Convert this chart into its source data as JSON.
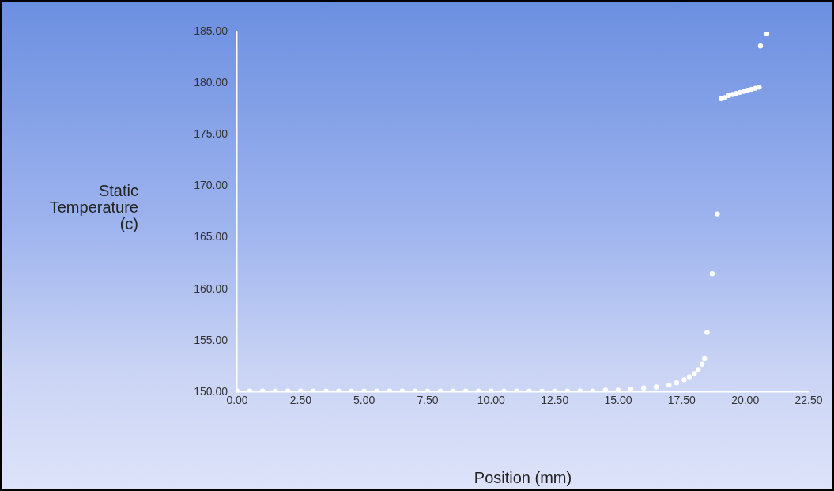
{
  "chart_data": {
    "type": "scatter",
    "xlabel": "Position (mm)",
    "ylabel": "Static Temperature (c)",
    "xlim": [
      0,
      22.5
    ],
    "ylim": [
      150,
      185
    ],
    "xticks": [
      {
        "value": 0,
        "label": "0.00"
      },
      {
        "value": 2.5,
        "label": "2.50"
      },
      {
        "value": 5,
        "label": "5.00"
      },
      {
        "value": 7.5,
        "label": "7.50"
      },
      {
        "value": 10,
        "label": "10.00"
      },
      {
        "value": 12.5,
        "label": "12.50"
      },
      {
        "value": 15,
        "label": "15.00"
      },
      {
        "value": 17.5,
        "label": "17.50"
      },
      {
        "value": 20,
        "label": "20.00"
      },
      {
        "value": 22.5,
        "label": "22.50"
      }
    ],
    "yticks": [
      {
        "value": 150,
        "label": "150.00"
      },
      {
        "value": 155,
        "label": "155.00"
      },
      {
        "value": 160,
        "label": "160.00"
      },
      {
        "value": 165,
        "label": "165.00"
      },
      {
        "value": 170,
        "label": "170.00"
      },
      {
        "value": 175,
        "label": "175.00"
      },
      {
        "value": 180,
        "label": "180.00"
      },
      {
        "value": 185,
        "label": "185.00"
      }
    ],
    "grid": false,
    "legend": false,
    "marker": "circle",
    "series": [
      {
        "color": "#ffffff",
        "x": [
          0,
          0.5,
          1,
          1.5,
          2,
          2.5,
          3,
          3.5,
          4,
          4.5,
          5,
          5.5,
          6,
          6.5,
          7,
          7.5,
          8,
          8.5,
          9,
          9.5,
          10,
          10.5,
          11,
          11.5,
          12,
          12.5,
          13,
          13.5,
          14,
          14.5,
          15,
          15.5,
          16,
          16.5,
          17,
          17.3,
          17.6,
          17.8,
          18,
          18.15,
          18.3,
          18.4,
          18.5,
          18.7,
          18.9,
          19.05,
          19.2,
          19.35,
          19.5,
          19.65,
          19.8,
          19.95,
          20.1,
          20.25,
          20.4,
          20.55,
          20.6,
          20.85
        ],
        "values": [
          150.1,
          150.1,
          150.1,
          150.1,
          150.1,
          150.1,
          150.1,
          150.1,
          150.1,
          150.1,
          150.1,
          150.1,
          150.1,
          150.1,
          150.1,
          150.1,
          150.1,
          150.1,
          150.1,
          150.1,
          150.1,
          150.1,
          150.1,
          150.1,
          150.1,
          150.1,
          150.1,
          150.1,
          150.1,
          150.2,
          150.2,
          150.3,
          150.4,
          150.5,
          150.7,
          150.9,
          151.2,
          151.5,
          151.8,
          152.2,
          152.7,
          153.3,
          155.8,
          161.5,
          167.3,
          178.5,
          178.6,
          178.8,
          178.9,
          179.0,
          179.1,
          179.2,
          179.3,
          179.4,
          179.5,
          179.6,
          183.6,
          184.8
        ]
      }
    ]
  }
}
